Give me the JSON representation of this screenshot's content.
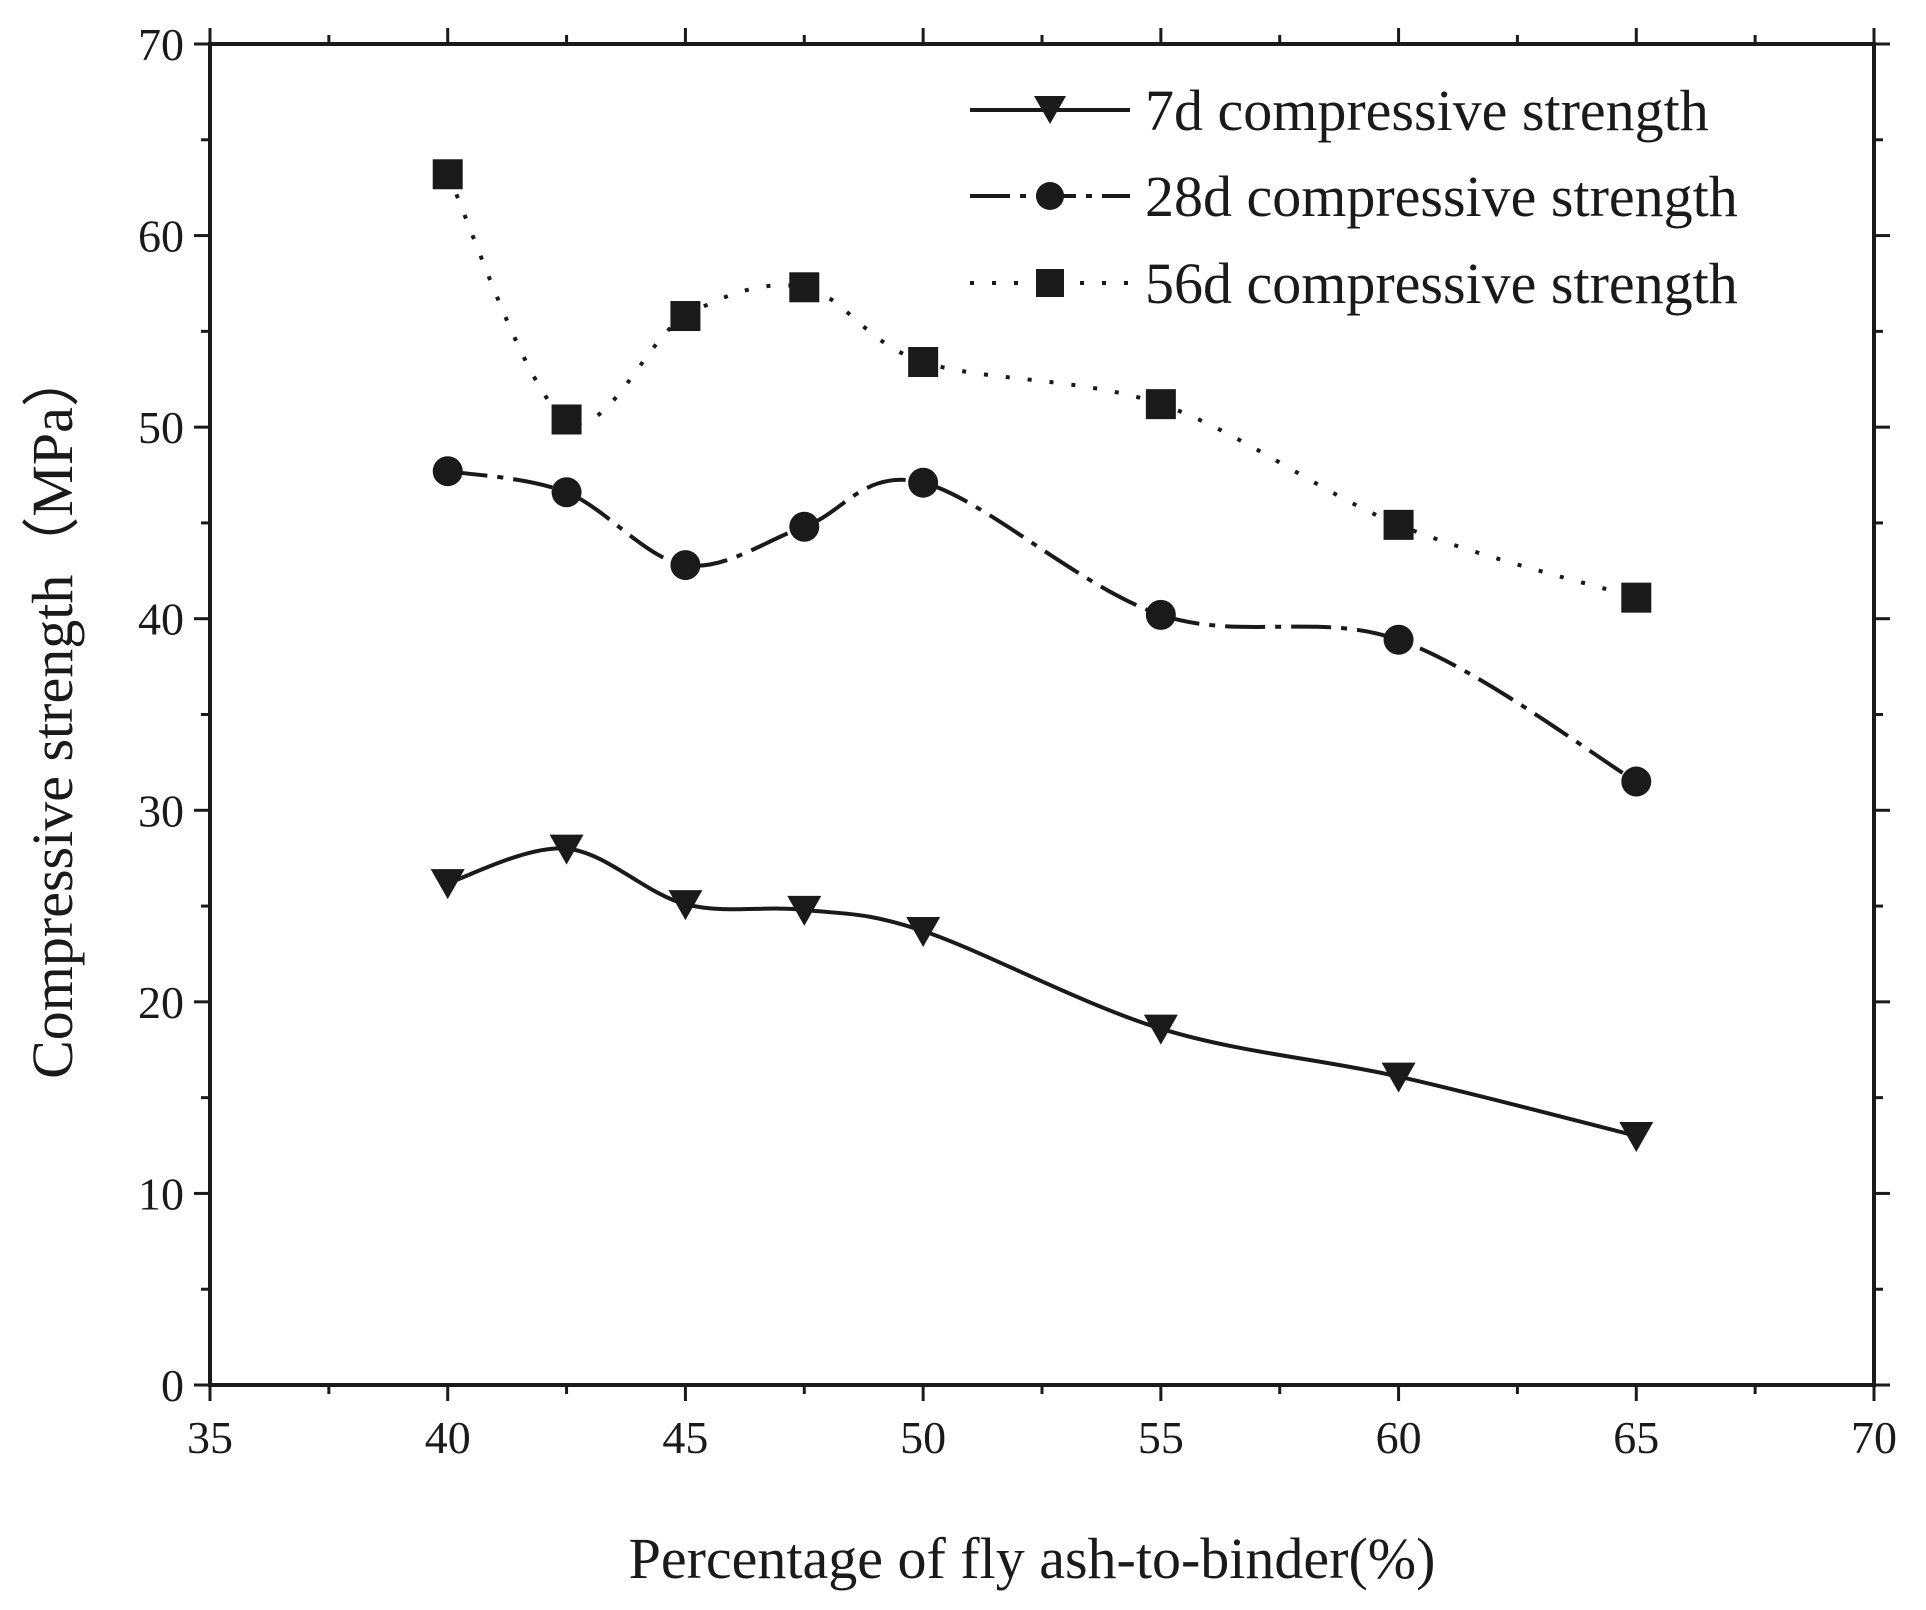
{
  "chart_data": {
    "type": "line",
    "title": "",
    "xlabel": "Percentage of fly ash-to-binder(%)",
    "ylabel": "Compressive strength（MPa）",
    "xlim": [
      35,
      70
    ],
    "ylim": [
      0,
      70
    ],
    "xticks": [
      35,
      40,
      45,
      50,
      55,
      60,
      65,
      70
    ],
    "yticks": [
      0,
      10,
      20,
      30,
      40,
      50,
      60,
      70
    ],
    "x": [
      40,
      42.5,
      45,
      47.5,
      50,
      55,
      60,
      65
    ],
    "grid": false,
    "legend_position": "top-right",
    "series": [
      {
        "name": "7d compressive strength",
        "marker": "triangle-down",
        "line": "solid",
        "values": [
          26.2,
          28.0,
          25.1,
          24.8,
          23.7,
          18.6,
          16.1,
          13.0
        ]
      },
      {
        "name": "28d compressive strength",
        "marker": "circle",
        "line": "dashdot",
        "values": [
          47.7,
          46.6,
          42.8,
          44.8,
          47.1,
          40.2,
          38.9,
          31.5
        ]
      },
      {
        "name": "56d compressive strength",
        "marker": "square",
        "line": "dotted",
        "values": [
          63.2,
          50.4,
          55.8,
          57.3,
          53.4,
          51.2,
          44.9,
          41.1
        ]
      }
    ],
    "colors": {
      "ink": "#1a1a1a"
    }
  }
}
